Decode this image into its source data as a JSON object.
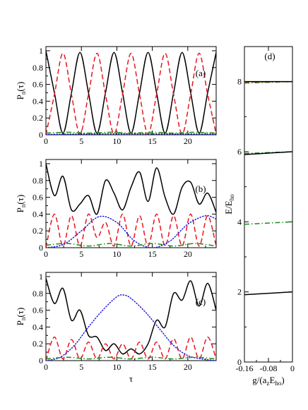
{
  "colors": {
    "black": "#000000",
    "red": "#e8141e",
    "blue": "#1f1fe0",
    "green": "#1a8a1a"
  },
  "chart_data": [
    {
      "id": "a",
      "type": "line",
      "tag": "(a)",
      "ylabel": "P",
      "ylabel_sub": "n",
      "ylabel_arg": "(τ)",
      "xlabel": "",
      "xlim": [
        0,
        24
      ],
      "ylim": [
        0,
        1.05
      ],
      "xticks": [
        0,
        5,
        10,
        15,
        20
      ],
      "yticks": [
        0,
        0.2,
        0.4,
        0.6,
        0.8,
        1
      ],
      "ytick_labels": [
        "0",
        "0.2",
        "0.4",
        "0.6",
        "0.8",
        "1"
      ],
      "series": [
        {
          "style": "solid",
          "color": "black",
          "x": [
            0,
            1.2,
            2.4,
            3.6,
            4.8,
            6.0,
            7.2,
            8.4,
            9.6,
            10.8,
            12.0,
            13.2,
            14.4,
            15.6,
            16.8,
            18.0,
            19.2,
            20.4,
            21.6,
            22.8,
            24.0
          ],
          "y": [
            1.0,
            0.5,
            0.02,
            0.5,
            0.98,
            0.5,
            0.02,
            0.5,
            0.98,
            0.5,
            0.02,
            0.5,
            0.98,
            0.5,
            0.02,
            0.5,
            0.98,
            0.5,
            0.02,
            0.5,
            0.98
          ]
        },
        {
          "style": "dashed",
          "color": "red",
          "x": [
            0,
            1.2,
            2.4,
            3.6,
            4.8,
            6.0,
            7.2,
            8.4,
            9.6,
            10.8,
            12.0,
            13.2,
            14.4,
            15.6,
            16.8,
            18.0,
            19.2,
            20.4,
            21.6,
            22.8,
            24.0
          ],
          "y": [
            0.0,
            0.48,
            0.97,
            0.48,
            0.01,
            0.48,
            0.97,
            0.48,
            0.01,
            0.48,
            0.97,
            0.48,
            0.01,
            0.48,
            0.97,
            0.48,
            0.01,
            0.48,
            0.97,
            0.48,
            0.01
          ]
        },
        {
          "style": "dotted",
          "color": "blue",
          "x": [
            0,
            6,
            12,
            18,
            24
          ],
          "y": [
            0.005,
            0.01,
            0.012,
            0.01,
            0.008
          ]
        },
        {
          "style": "dashdot",
          "color": "green",
          "x": [
            0,
            3,
            6,
            9,
            12,
            15,
            18,
            21,
            24
          ],
          "y": [
            0.02,
            0.03,
            0.02,
            0.03,
            0.02,
            0.03,
            0.02,
            0.03,
            0.02
          ]
        }
      ]
    },
    {
      "id": "b",
      "type": "line",
      "tag": "(b)",
      "ylabel": "P",
      "ylabel_sub": "n",
      "ylabel_arg": "(τ)",
      "xlabel": "",
      "xlim": [
        0,
        24
      ],
      "ylim": [
        0,
        1.05
      ],
      "xticks": [
        0,
        5,
        10,
        15,
        20
      ],
      "yticks": [
        0,
        0.2,
        0.4,
        0.6,
        0.8,
        1
      ],
      "ytick_labels": [
        "0",
        "0.2",
        "0.4",
        "0.6",
        "0.8",
        "1"
      ],
      "series": [
        {
          "style": "solid",
          "color": "black",
          "x": [
            0,
            1.2,
            2.4,
            3.6,
            4.8,
            6.0,
            7.2,
            8.4,
            9.6,
            10.8,
            12.0,
            13.2,
            14.4,
            15.6,
            16.8,
            18.0,
            19.2,
            20.4,
            21.6,
            22.8,
            24.0
          ],
          "y": [
            1.0,
            0.62,
            0.85,
            0.45,
            0.52,
            0.62,
            0.4,
            0.8,
            0.65,
            0.45,
            0.72,
            0.9,
            0.55,
            0.95,
            0.6,
            0.4,
            0.72,
            0.78,
            0.52,
            0.65,
            0.42
          ]
        },
        {
          "style": "dashed",
          "color": "red",
          "x": [
            0,
            1.2,
            2.4,
            3.6,
            4.8,
            6.0,
            7.2,
            8.4,
            9.6,
            10.8,
            12.0,
            13.2,
            14.4,
            15.6,
            16.8,
            18.0,
            19.2,
            20.4,
            21.6,
            22.8,
            24.0
          ],
          "y": [
            0.0,
            0.4,
            0.02,
            0.38,
            0.02,
            0.4,
            0.12,
            0.3,
            0.02,
            0.4,
            0.02,
            0.38,
            0.02,
            0.4,
            0.02,
            0.38,
            0.02,
            0.4,
            0.02,
            0.38,
            0.02
          ]
        },
        {
          "style": "dotted",
          "color": "blue",
          "x": [
            0,
            2.5,
            5,
            7.5,
            10,
            12.5,
            15,
            17.5,
            20,
            22.5,
            24
          ],
          "y": [
            0.0,
            0.04,
            0.2,
            0.37,
            0.3,
            0.08,
            0.0,
            0.08,
            0.28,
            0.38,
            0.34
          ]
        },
        {
          "style": "dashdot",
          "color": "green",
          "x": [
            0,
            3,
            6,
            9,
            12,
            15,
            18,
            21,
            24
          ],
          "y": [
            0.03,
            0.05,
            0.02,
            0.05,
            0.02,
            0.05,
            0.02,
            0.05,
            0.02
          ]
        }
      ]
    },
    {
      "id": "c",
      "type": "line",
      "tag": "(c)",
      "ylabel": "P",
      "ylabel_sub": "n",
      "ylabel_arg": "(τ)",
      "xlabel": "τ",
      "xlim": [
        0,
        24
      ],
      "ylim": [
        0,
        1.05
      ],
      "xticks": [
        0,
        5,
        10,
        15,
        20
      ],
      "yticks": [
        0,
        0.2,
        0.4,
        0.6,
        0.8,
        1
      ],
      "ytick_labels": [
        "0",
        "0.2",
        "0.4",
        "0.6",
        "0.8",
        "1"
      ],
      "series": [
        {
          "style": "solid",
          "color": "black",
          "x": [
            0,
            1.2,
            2.4,
            3.6,
            4.8,
            6.0,
            7.2,
            8.4,
            9.6,
            10.8,
            12.0,
            13.2,
            14.4,
            15.6,
            16.8,
            18.0,
            19.2,
            20.4,
            21.6,
            22.8,
            24.0
          ],
          "y": [
            0.98,
            0.68,
            0.86,
            0.48,
            0.6,
            0.3,
            0.28,
            0.12,
            0.2,
            0.08,
            0.14,
            0.08,
            0.2,
            0.48,
            0.4,
            0.8,
            0.72,
            0.95,
            0.65,
            0.92,
            0.6
          ]
        },
        {
          "style": "dashed",
          "color": "red",
          "x": [
            0,
            1.2,
            2.4,
            3.6,
            4.8,
            6.0,
            7.2,
            8.4,
            9.6,
            10.8,
            12.0,
            13.2,
            14.4,
            15.6,
            16.8,
            18.0,
            19.2,
            20.4,
            21.6,
            22.8,
            24.0
          ],
          "y": [
            0.0,
            0.28,
            0.02,
            0.25,
            0.02,
            0.22,
            0.02,
            0.2,
            0.02,
            0.2,
            0.02,
            0.22,
            0.02,
            0.22,
            0.02,
            0.26,
            0.02,
            0.28,
            0.02,
            0.28,
            0.02
          ]
        },
        {
          "style": "dotted",
          "color": "blue",
          "x": [
            0,
            2,
            4,
            6,
            8,
            10,
            11,
            12,
            14,
            16,
            18,
            20,
            22,
            24
          ],
          "y": [
            0.0,
            0.04,
            0.18,
            0.4,
            0.6,
            0.76,
            0.78,
            0.74,
            0.58,
            0.38,
            0.18,
            0.06,
            0.02,
            0.0
          ]
        },
        {
          "style": "dashdot",
          "color": "green",
          "x": [
            0,
            3,
            6,
            9,
            12,
            15,
            18,
            21,
            24
          ],
          "y": [
            0.02,
            0.04,
            0.02,
            0.04,
            0.02,
            0.04,
            0.02,
            0.04,
            0.02
          ]
        }
      ]
    },
    {
      "id": "d",
      "type": "line",
      "tag": "(d)",
      "ylabel": "E/E",
      "ylabel_sub": "ho",
      "xlabel": "g/(a",
      "xlabel_sub1": "z",
      "xlabel_mid": "E",
      "xlabel_sub2": "ho",
      "xlabel_end": ")",
      "xlim": [
        -0.16,
        0
      ],
      "ylim": [
        0,
        9
      ],
      "xticks": [
        -0.16,
        -0.08,
        0
      ],
      "xtick_labels": [
        "-0.16",
        "-0.08",
        "0"
      ],
      "xminor": [
        -0.12,
        -0.04
      ],
      "yticks": [
        0,
        2,
        4,
        6,
        8
      ],
      "ytick_labels": [
        "0",
        "2",
        "4",
        "6",
        "8"
      ],
      "series": [
        {
          "style": "solid",
          "color": "black",
          "x": [
            -0.16,
            0
          ],
          "y": [
            1.92,
            2.0
          ]
        },
        {
          "style": "dashdot",
          "color": "green",
          "x": [
            -0.16,
            0
          ],
          "y": [
            3.93,
            4.0
          ]
        },
        {
          "style": "dashdot",
          "color": "green",
          "x": [
            -0.16,
            0
          ],
          "y": [
            5.95,
            6.0
          ]
        },
        {
          "style": "solid",
          "color": "black",
          "x": [
            -0.16,
            0
          ],
          "y": [
            5.92,
            6.0
          ]
        },
        {
          "style": "dashdot",
          "color": "green",
          "x": [
            -0.16,
            0
          ],
          "y": [
            7.96,
            8.0
          ]
        },
        {
          "style": "dashed",
          "color": "red",
          "x": [
            -0.16,
            0
          ],
          "y": [
            7.99,
            8.0
          ]
        },
        {
          "style": "solid",
          "color": "black",
          "x": [
            -0.16,
            0
          ],
          "y": [
            8.0,
            8.0
          ]
        }
      ]
    }
  ]
}
